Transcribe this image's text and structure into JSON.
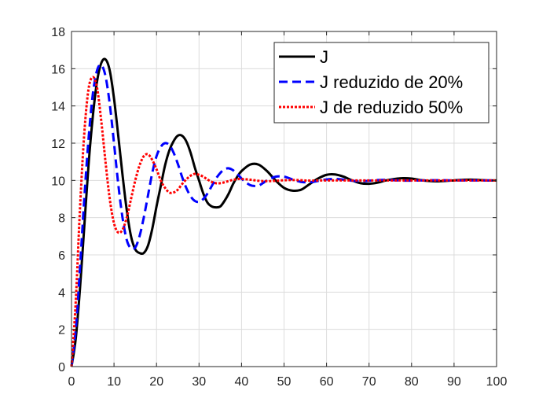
{
  "chart_data": {
    "type": "line",
    "title": "",
    "xlabel": "",
    "ylabel": "",
    "xlim": [
      0,
      100
    ],
    "ylim": [
      0,
      18
    ],
    "xticks": [
      0,
      10,
      20,
      30,
      40,
      50,
      60,
      70,
      80,
      90,
      100
    ],
    "yticks": [
      0,
      2,
      4,
      6,
      8,
      10,
      12,
      14,
      16,
      18
    ],
    "grid": true,
    "legend_position": "top-right",
    "series": [
      {
        "name": "J",
        "color": "#000000",
        "style": "solid",
        "points": [
          [
            0,
            0
          ],
          [
            1,
            1.5
          ],
          [
            2,
            4.2
          ],
          [
            3,
            7.5
          ],
          [
            4,
            10.8
          ],
          [
            5,
            13.4
          ],
          [
            6,
            15.3
          ],
          [
            7,
            16.3
          ],
          [
            8,
            16.5
          ],
          [
            9,
            15.9
          ],
          [
            10,
            14.4
          ],
          [
            11,
            12.4
          ],
          [
            12,
            10.3
          ],
          [
            13,
            8.4
          ],
          [
            14,
            7.0
          ],
          [
            15,
            6.3
          ],
          [
            16,
            6.1
          ],
          [
            17,
            6.1
          ],
          [
            18,
            6.5
          ],
          [
            19,
            7.4
          ],
          [
            20,
            8.6
          ],
          [
            21,
            9.7
          ],
          [
            22,
            10.8
          ],
          [
            23,
            11.6
          ],
          [
            24,
            12.1
          ],
          [
            25,
            12.4
          ],
          [
            26,
            12.4
          ],
          [
            27,
            12.1
          ],
          [
            28,
            11.5
          ],
          [
            29,
            10.7
          ],
          [
            30,
            10.0
          ],
          [
            31,
            9.3
          ],
          [
            32,
            8.8
          ],
          [
            33,
            8.6
          ],
          [
            34,
            8.55
          ],
          [
            35,
            8.6
          ],
          [
            36,
            8.9
          ],
          [
            37,
            9.3
          ],
          [
            38,
            9.8
          ],
          [
            39,
            10.2
          ],
          [
            40,
            10.5
          ],
          [
            42,
            10.85
          ],
          [
            44,
            10.85
          ],
          [
            46,
            10.5
          ],
          [
            48,
            10.0
          ],
          [
            50,
            9.6
          ],
          [
            52,
            9.45
          ],
          [
            54,
            9.5
          ],
          [
            56,
            9.8
          ],
          [
            58,
            10.1
          ],
          [
            60,
            10.3
          ],
          [
            62,
            10.32
          ],
          [
            64,
            10.2
          ],
          [
            66,
            10.0
          ],
          [
            68,
            9.85
          ],
          [
            70,
            9.82
          ],
          [
            72,
            9.88
          ],
          [
            74,
            10.0
          ],
          [
            76,
            10.08
          ],
          [
            78,
            10.12
          ],
          [
            80,
            10.1
          ],
          [
            82,
            10.02
          ],
          [
            84,
            9.97
          ],
          [
            86,
            9.95
          ],
          [
            88,
            9.97
          ],
          [
            90,
            10.0
          ],
          [
            92,
            10.03
          ],
          [
            94,
            10.04
          ],
          [
            96,
            10.02
          ],
          [
            98,
            10.0
          ],
          [
            100,
            10.0
          ]
        ]
      },
      {
        "name": "J reduzido de 20%",
        "color": "#0000ff",
        "style": "dashed",
        "points": [
          [
            0,
            0
          ],
          [
            1,
            2.0
          ],
          [
            2,
            5.3
          ],
          [
            3,
            9.0
          ],
          [
            4,
            12.2
          ],
          [
            5,
            14.6
          ],
          [
            6,
            15.9
          ],
          [
            7,
            16.2
          ],
          [
            8,
            15.6
          ],
          [
            9,
            14.1
          ],
          [
            10,
            12.0
          ],
          [
            11,
            9.8
          ],
          [
            12,
            8.0
          ],
          [
            13,
            6.8
          ],
          [
            14,
            6.35
          ],
          [
            15,
            6.4
          ],
          [
            16,
            7.0
          ],
          [
            17,
            8.0
          ],
          [
            18,
            9.2
          ],
          [
            19,
            10.4
          ],
          [
            20,
            11.3
          ],
          [
            21,
            11.8
          ],
          [
            22,
            12.0
          ],
          [
            23,
            11.9
          ],
          [
            24,
            11.5
          ],
          [
            25,
            10.9
          ],
          [
            26,
            10.2
          ],
          [
            27,
            9.6
          ],
          [
            28,
            9.15
          ],
          [
            29,
            8.9
          ],
          [
            30,
            8.85
          ],
          [
            31,
            9.0
          ],
          [
            32,
            9.3
          ],
          [
            33,
            9.7
          ],
          [
            34,
            10.1
          ],
          [
            35,
            10.4
          ],
          [
            36,
            10.6
          ],
          [
            37,
            10.65
          ],
          [
            38,
            10.55
          ],
          [
            39,
            10.35
          ],
          [
            40,
            10.1
          ],
          [
            41,
            9.9
          ],
          [
            42,
            9.75
          ],
          [
            43,
            9.7
          ],
          [
            44,
            9.72
          ],
          [
            45,
            9.85
          ],
          [
            46,
            10.0
          ],
          [
            48,
            10.2
          ],
          [
            50,
            10.2
          ],
          [
            52,
            10.05
          ],
          [
            54,
            9.92
          ],
          [
            56,
            9.9
          ],
          [
            58,
            9.97
          ],
          [
            60,
            10.05
          ],
          [
            62,
            10.08
          ],
          [
            64,
            10.04
          ],
          [
            66,
            9.98
          ],
          [
            68,
            9.96
          ],
          [
            70,
            9.98
          ],
          [
            72,
            10.02
          ],
          [
            74,
            10.03
          ],
          [
            76,
            10.01
          ],
          [
            78,
            9.99
          ],
          [
            80,
            9.99
          ],
          [
            85,
            10.01
          ],
          [
            90,
            10.0
          ],
          [
            95,
            10.0
          ],
          [
            100,
            10.0
          ]
        ]
      },
      {
        "name": "J de reduzido 50%",
        "color": "#ff0000",
        "style": "dotted",
        "points": [
          [
            0,
            0
          ],
          [
            1,
            3.5
          ],
          [
            2,
            8.5
          ],
          [
            3,
            12.5
          ],
          [
            4,
            14.9
          ],
          [
            5,
            15.55
          ],
          [
            6,
            15.0
          ],
          [
            7,
            13.2
          ],
          [
            8,
            11.0
          ],
          [
            9,
            9.0
          ],
          [
            10,
            7.7
          ],
          [
            11,
            7.2
          ],
          [
            12,
            7.35
          ],
          [
            13,
            8.0
          ],
          [
            14,
            9.0
          ],
          [
            15,
            10.0
          ],
          [
            16,
            10.8
          ],
          [
            17,
            11.3
          ],
          [
            18,
            11.4
          ],
          [
            19,
            11.1
          ],
          [
            20,
            10.6
          ],
          [
            21,
            10.0
          ],
          [
            22,
            9.6
          ],
          [
            23,
            9.35
          ],
          [
            24,
            9.35
          ],
          [
            25,
            9.5
          ],
          [
            26,
            9.8
          ],
          [
            27,
            10.05
          ],
          [
            28,
            10.25
          ],
          [
            29,
            10.35
          ],
          [
            30,
            10.3
          ],
          [
            31,
            10.2
          ],
          [
            32,
            10.05
          ],
          [
            33,
            9.92
          ],
          [
            34,
            9.85
          ],
          [
            35,
            9.85
          ],
          [
            36,
            9.9
          ],
          [
            37,
            9.97
          ],
          [
            38,
            10.03
          ],
          [
            39,
            10.07
          ],
          [
            40,
            10.08
          ],
          [
            42,
            10.04
          ],
          [
            44,
            9.98
          ],
          [
            46,
            9.96
          ],
          [
            48,
            9.98
          ],
          [
            50,
            10.01
          ],
          [
            52,
            10.02
          ],
          [
            54,
            10.01
          ],
          [
            56,
            9.99
          ],
          [
            60,
            10.0
          ],
          [
            70,
            10.0
          ],
          [
            80,
            10.0
          ],
          [
            90,
            10.0
          ],
          [
            100,
            10.0
          ]
        ]
      }
    ]
  }
}
